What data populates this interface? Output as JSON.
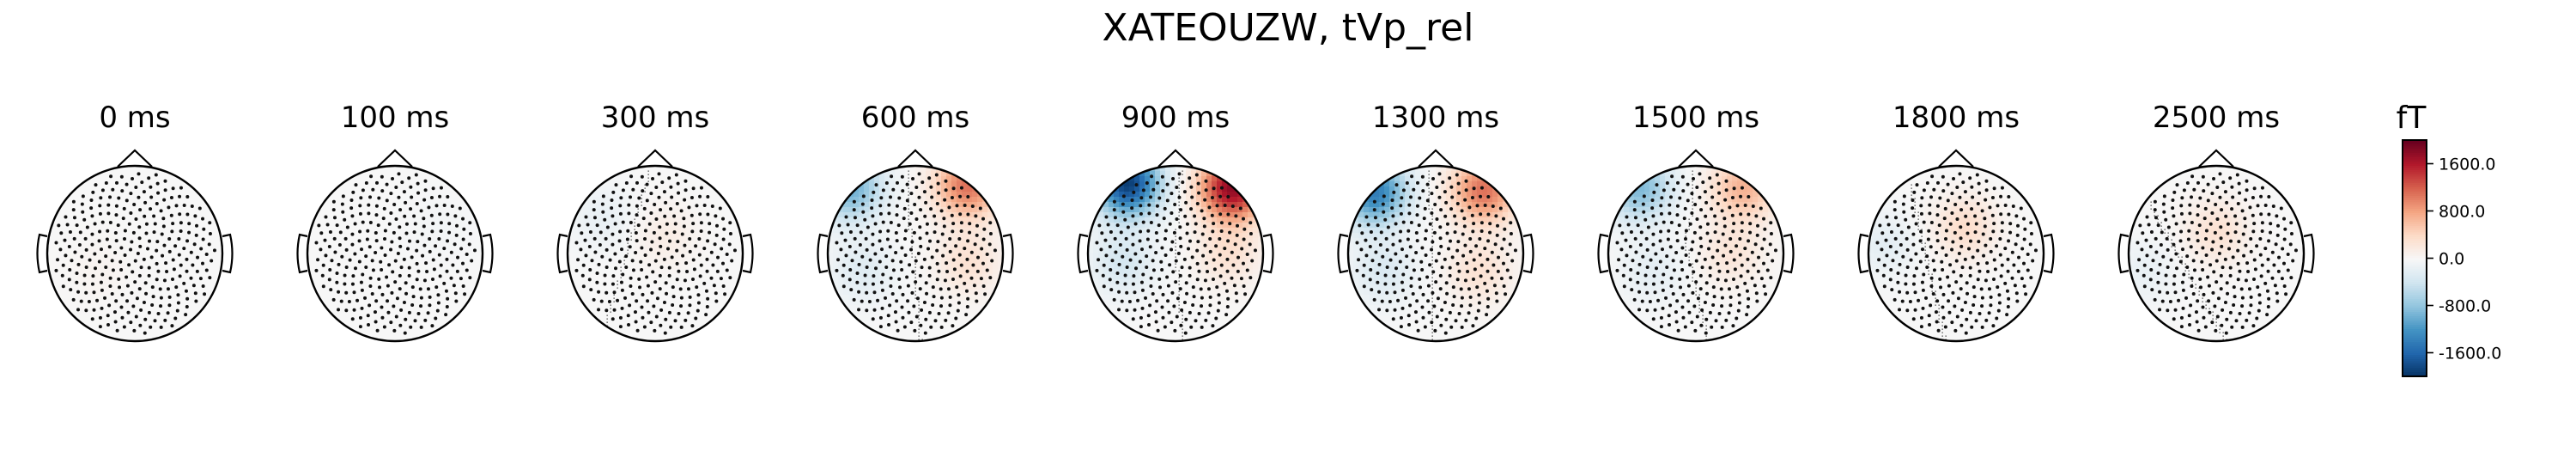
{
  "figure": {
    "title": "XATEOUZW, tVp_rel"
  },
  "chart_data": {
    "type": "heatmap",
    "title": "XATEOUZW, tVp_rel",
    "subplots": [
      {
        "label": "0 ms",
        "blobs": [
          {
            "lr": -0.4,
            "fb": -0.2,
            "amp": 60
          }
        ]
      },
      {
        "label": "100 ms",
        "blobs": [
          {
            "lr": 0.5,
            "fb": 0.3,
            "amp": -50
          }
        ]
      },
      {
        "label": "300 ms",
        "blobs": [
          {
            "lr": 0.1,
            "fb": 0.2,
            "amp": 150
          },
          {
            "lr": -0.6,
            "fb": 0.4,
            "amp": -150
          }
        ]
      },
      {
        "label": "600 ms",
        "blobs": [
          {
            "lr": -0.75,
            "fb": 0.75,
            "amp": -1000
          },
          {
            "lr": 0.6,
            "fb": 0.78,
            "amp": 1100
          },
          {
            "lr": 0.6,
            "fb": -0.1,
            "amp": 300
          },
          {
            "lr": -0.6,
            "fb": -0.2,
            "amp": -250
          }
        ]
      },
      {
        "label": "900 ms",
        "blobs": [
          {
            "lr": -0.55,
            "fb": 0.8,
            "amp": -1900
          },
          {
            "lr": 0.65,
            "fb": 0.75,
            "amp": 1800
          },
          {
            "lr": 0.6,
            "fb": 0.0,
            "amp": 300
          },
          {
            "lr": -0.6,
            "fb": -0.1,
            "amp": -350
          }
        ]
      },
      {
        "label": "1300 ms",
        "blobs": [
          {
            "lr": -0.7,
            "fb": 0.7,
            "amp": -1400
          },
          {
            "lr": 0.55,
            "fb": 0.72,
            "amp": 1100
          },
          {
            "lr": 0.5,
            "fb": -0.2,
            "amp": 300
          },
          {
            "lr": -0.6,
            "fb": -0.2,
            "amp": -300
          }
        ]
      },
      {
        "label": "1500 ms",
        "blobs": [
          {
            "lr": -0.65,
            "fb": 0.75,
            "amp": -900
          },
          {
            "lr": 0.55,
            "fb": 0.75,
            "amp": 700
          },
          {
            "lr": 0.4,
            "fb": 0.0,
            "amp": 250
          },
          {
            "lr": -0.5,
            "fb": -0.2,
            "amp": -200
          }
        ]
      },
      {
        "label": "1800 ms",
        "blobs": [
          {
            "lr": 0.1,
            "fb": 0.3,
            "amp": 350
          },
          {
            "lr": -0.8,
            "fb": 0.1,
            "amp": -200
          }
        ]
      },
      {
        "label": "2500 ms",
        "blobs": [
          {
            "lr": 0.0,
            "fb": 0.25,
            "amp": 300
          },
          {
            "lr": -0.8,
            "fb": -0.2,
            "amp": -150
          }
        ]
      }
    ],
    "colorbar": {
      "label": "fT",
      "ticks": [
        "1600.0",
        "800.0",
        "0.0",
        "-800.0",
        "-1600.0"
      ],
      "tick_values": [
        1600,
        800,
        0,
        -800,
        -1600
      ],
      "range": [
        -2000,
        2000
      ],
      "colormap": "RdBu_r",
      "colors": {
        "low": "#053061",
        "mid": "#f7f7f7",
        "high": "#67001f"
      }
    }
  }
}
